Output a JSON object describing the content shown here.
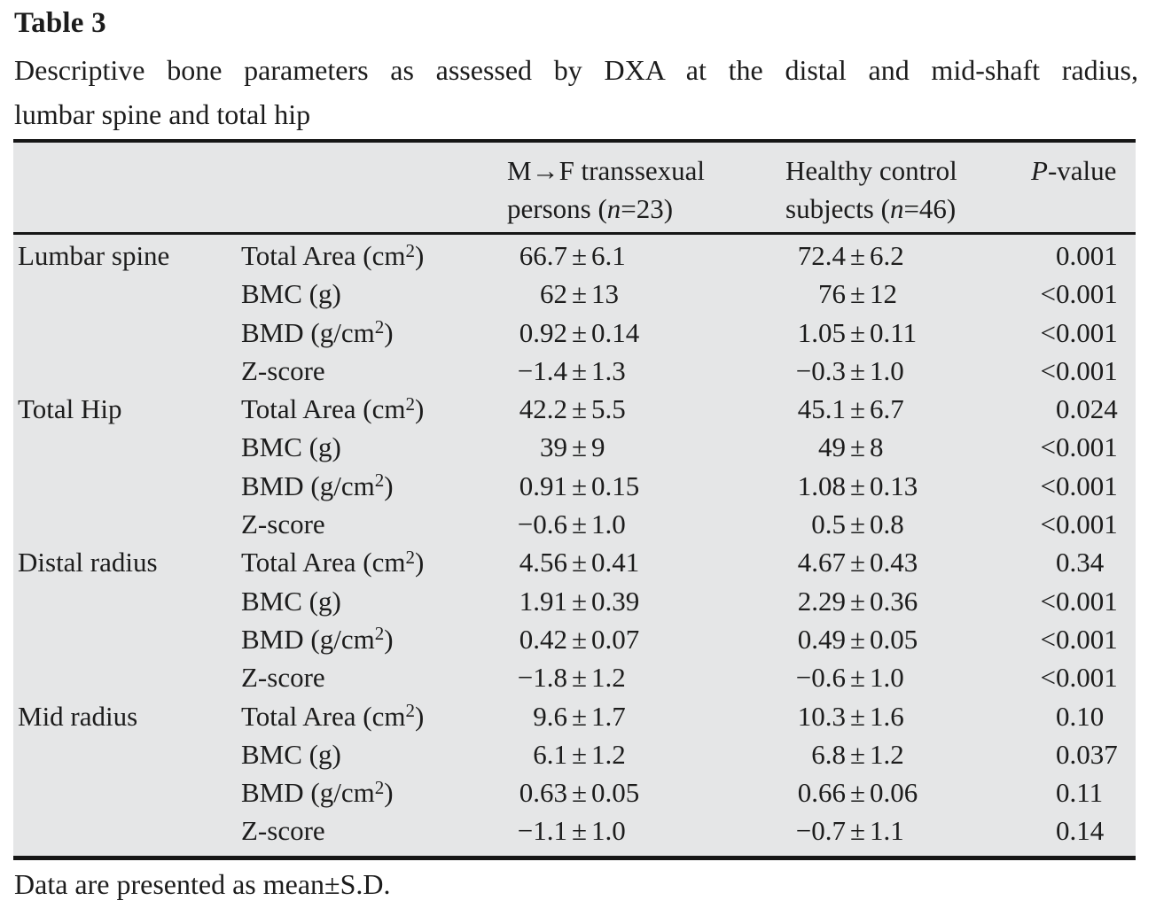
{
  "title": "Table 3",
  "caption_line1": "Descriptive bone parameters as assessed by DXA at the distal and mid-shaft radius,",
  "caption_line2": "lumbar spine and total hip",
  "colors": {
    "table_bg": "#e5e6e7",
    "rule": "#161616",
    "text": "#1c1c1c"
  },
  "header": {
    "group_col3": {
      "line1": "M→F transsexual",
      "line2_pre": "persons (",
      "line2_italic": "n",
      "line2_post": "=23)"
    },
    "group_col4": {
      "line1": "Healthy control",
      "line2_pre": "subjects (",
      "line2_italic": "n",
      "line2_post": "=46)"
    },
    "col5": {
      "italic": "P",
      "rest": "-value"
    }
  },
  "sections": [
    {
      "label": "Lumbar spine",
      "rows": [
        {
          "param": "Total Area (cm²)",
          "mf": "66.7±6.1",
          "hc": "72.4±6.2",
          "p": "0.001"
        },
        {
          "param": "BMC (g)",
          "mf": "62±13",
          "hc": "76±12",
          "p": "<0.001"
        },
        {
          "param": "BMD (g/cm²)",
          "mf": "0.92±0.14",
          "hc": "1.05±0.11",
          "p": "<0.001"
        },
        {
          "param": "Z-score",
          "mf": "−1.4±1.3",
          "hc": "−0.3±1.0",
          "p": "<0.001"
        }
      ]
    },
    {
      "label": "Total Hip",
      "rows": [
        {
          "param": "Total Area (cm²)",
          "mf": "42.2±5.5",
          "hc": "45.1±6.7",
          "p": "0.024"
        },
        {
          "param": "BMC (g)",
          "mf": "39±9",
          "hc": "49±8",
          "p": "<0.001"
        },
        {
          "param": "BMD (g/cm²)",
          "mf": "0.91±0.15",
          "hc": "1.08±0.13",
          "p": "<0.001"
        },
        {
          "param": "Z-score",
          "mf": "−0.6±1.0",
          "hc": "0.5±0.8",
          "p": "<0.001"
        }
      ]
    },
    {
      "label": "Distal radius",
      "rows": [
        {
          "param": "Total Area (cm²)",
          "mf": "4.56±0.41",
          "hc": "4.67±0.43",
          "p": "0.34"
        },
        {
          "param": "BMC (g)",
          "mf": "1.91±0.39",
          "hc": "2.29±0.36",
          "p": "<0.001"
        },
        {
          "param": "BMD (g/cm²)",
          "mf": "0.42±0.07",
          "hc": "0.49±0.05",
          "p": "<0.001"
        },
        {
          "param": "Z-score",
          "mf": "−1.8±1.2",
          "hc": "−0.6±1.0",
          "p": "<0.001"
        }
      ]
    },
    {
      "label": "Mid radius",
      "rows": [
        {
          "param": "Total Area (cm²)",
          "mf": "9.6±1.7",
          "hc": "10.3±1.6",
          "p": "0.10"
        },
        {
          "param": "BMC (g)",
          "mf": "6.1±1.2",
          "hc": "6.8±1.2",
          "p": "0.037"
        },
        {
          "param": "BMD (g/cm²)",
          "mf": "0.63±0.05",
          "hc": "0.66±0.06",
          "p": "0.11"
        },
        {
          "param": "Z-score",
          "mf": "−1.1±1.0",
          "hc": "−0.7±1.1",
          "p": "0.14"
        }
      ]
    }
  ],
  "footnote": "Data are presented as mean±S.D."
}
